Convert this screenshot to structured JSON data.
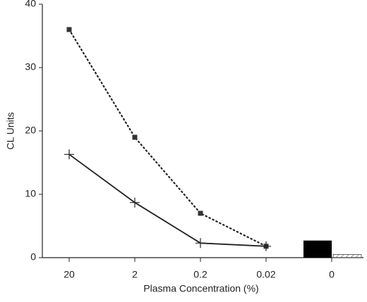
{
  "chart_data": {
    "type": "line",
    "xlabel": "Plasma Concentration (%)",
    "ylabel": "CL Units",
    "categories": [
      "20",
      "2",
      "0.2",
      "0.02",
      "0"
    ],
    "ylim": [
      0,
      40
    ],
    "yticks": [
      0,
      10,
      20,
      30,
      40
    ],
    "series": [
      {
        "color": "#222222",
        "dash": "dotted",
        "marker": "square",
        "values": [
          36,
          19,
          7,
          1.8,
          null
        ]
      },
      {
        "color": "#222222",
        "marker": "plus",
        "values": [
          16.3,
          8.7,
          2.3,
          1.8,
          null
        ]
      },
      {
        "type": "bar",
        "color": "#000000",
        "values": [
          null,
          null,
          null,
          null,
          2.7
        ]
      },
      {
        "type": "bar",
        "color": "#444444",
        "hatch": true,
        "values": [
          null,
          null,
          null,
          null,
          0.5
        ]
      }
    ]
  }
}
